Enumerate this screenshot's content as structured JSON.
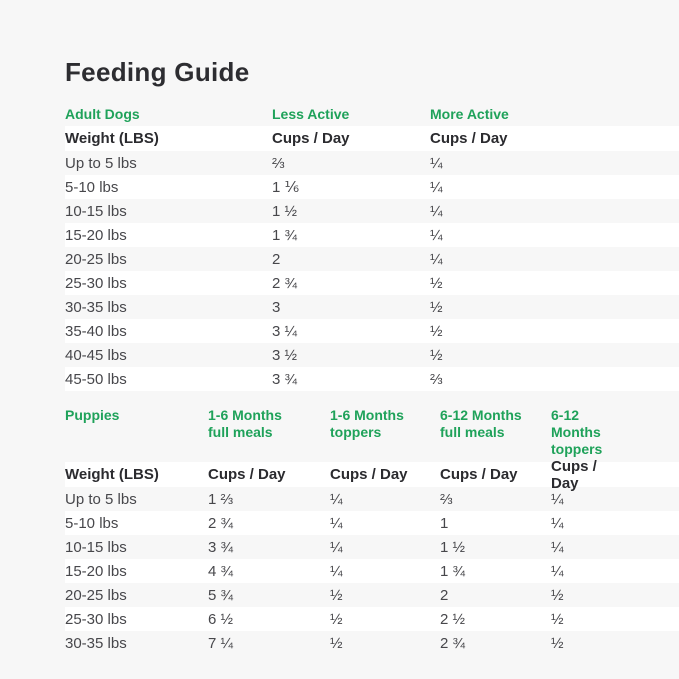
{
  "title": "Feeding Guide",
  "colors": {
    "accent_green": "#1fa25a",
    "heading_text": "#2d2d31",
    "body_text": "#47474b",
    "page_background": "#f7f7f7",
    "row_stripe_white": "#ffffff"
  },
  "adult": {
    "section": {
      "name": "Adult Dogs",
      "col2": "Less Active",
      "col3": "More Active"
    },
    "headers": {
      "weight": "Weight (LBS)",
      "col2": "Cups / Day",
      "col3": "Cups / Day"
    },
    "rows": [
      {
        "weight": "Up to 5 lbs",
        "less": "⅔",
        "more": "¼"
      },
      {
        "weight": "5-10 lbs",
        "less": "1 ⅙",
        "more": "¼"
      },
      {
        "weight": "10-15 lbs",
        "less": "1 ½",
        "more": "¼"
      },
      {
        "weight": "15-20 lbs",
        "less": "1 ¾",
        "more": "¼"
      },
      {
        "weight": "20-25 lbs",
        "less": "2",
        "more": "¼"
      },
      {
        "weight": "25-30 lbs",
        "less": "2 ¾",
        "more": "½"
      },
      {
        "weight": "30-35 lbs",
        "less": "3",
        "more": "½"
      },
      {
        "weight": "35-40 lbs",
        "less": "3 ¼",
        "more": "½"
      },
      {
        "weight": "40-45 lbs",
        "less": "3 ½",
        "more": "½"
      },
      {
        "weight": "45-50 lbs",
        "less": "3 ¾",
        "more": "⅔"
      }
    ]
  },
  "puppies": {
    "section": {
      "name": "Puppies",
      "col2": {
        "line1": "1-6 Months",
        "line2": "full meals"
      },
      "col3": {
        "line1": "1-6 Months",
        "line2": "toppers"
      },
      "col4": {
        "line1": "6-12 Months",
        "line2": "full meals"
      },
      "col5": {
        "line1": "6-12 Months",
        "line2": "toppers"
      }
    },
    "headers": {
      "weight": "Weight (LBS)",
      "col2": "Cups / Day",
      "col3": "Cups / Day",
      "col4": "Cups / Day",
      "col5": "Cups / Day"
    },
    "rows": [
      {
        "weight": "Up to 5 lbs",
        "c2": "1 ⅔",
        "c3": "¼",
        "c4": "⅔",
        "c5": "¼"
      },
      {
        "weight": "5-10 lbs",
        "c2": "2 ¾",
        "c3": "¼",
        "c4": "1",
        "c5": "¼"
      },
      {
        "weight": "10-15 lbs",
        "c2": "3 ¾",
        "c3": "¼",
        "c4": "1 ½",
        "c5": "¼"
      },
      {
        "weight": "15-20 lbs",
        "c2": "4 ¾",
        "c3": "¼",
        "c4": "1 ¾",
        "c5": "¼"
      },
      {
        "weight": "20-25 lbs",
        "c2": "5 ¾",
        "c3": "½",
        "c4": "2",
        "c5": "½"
      },
      {
        "weight": "25-30 lbs",
        "c2": "6 ½",
        "c3": "½",
        "c4": "2 ½",
        "c5": "½"
      },
      {
        "weight": "30-35 lbs",
        "c2": "7 ¼",
        "c3": "½",
        "c4": "2 ¾",
        "c5": "½"
      }
    ]
  }
}
